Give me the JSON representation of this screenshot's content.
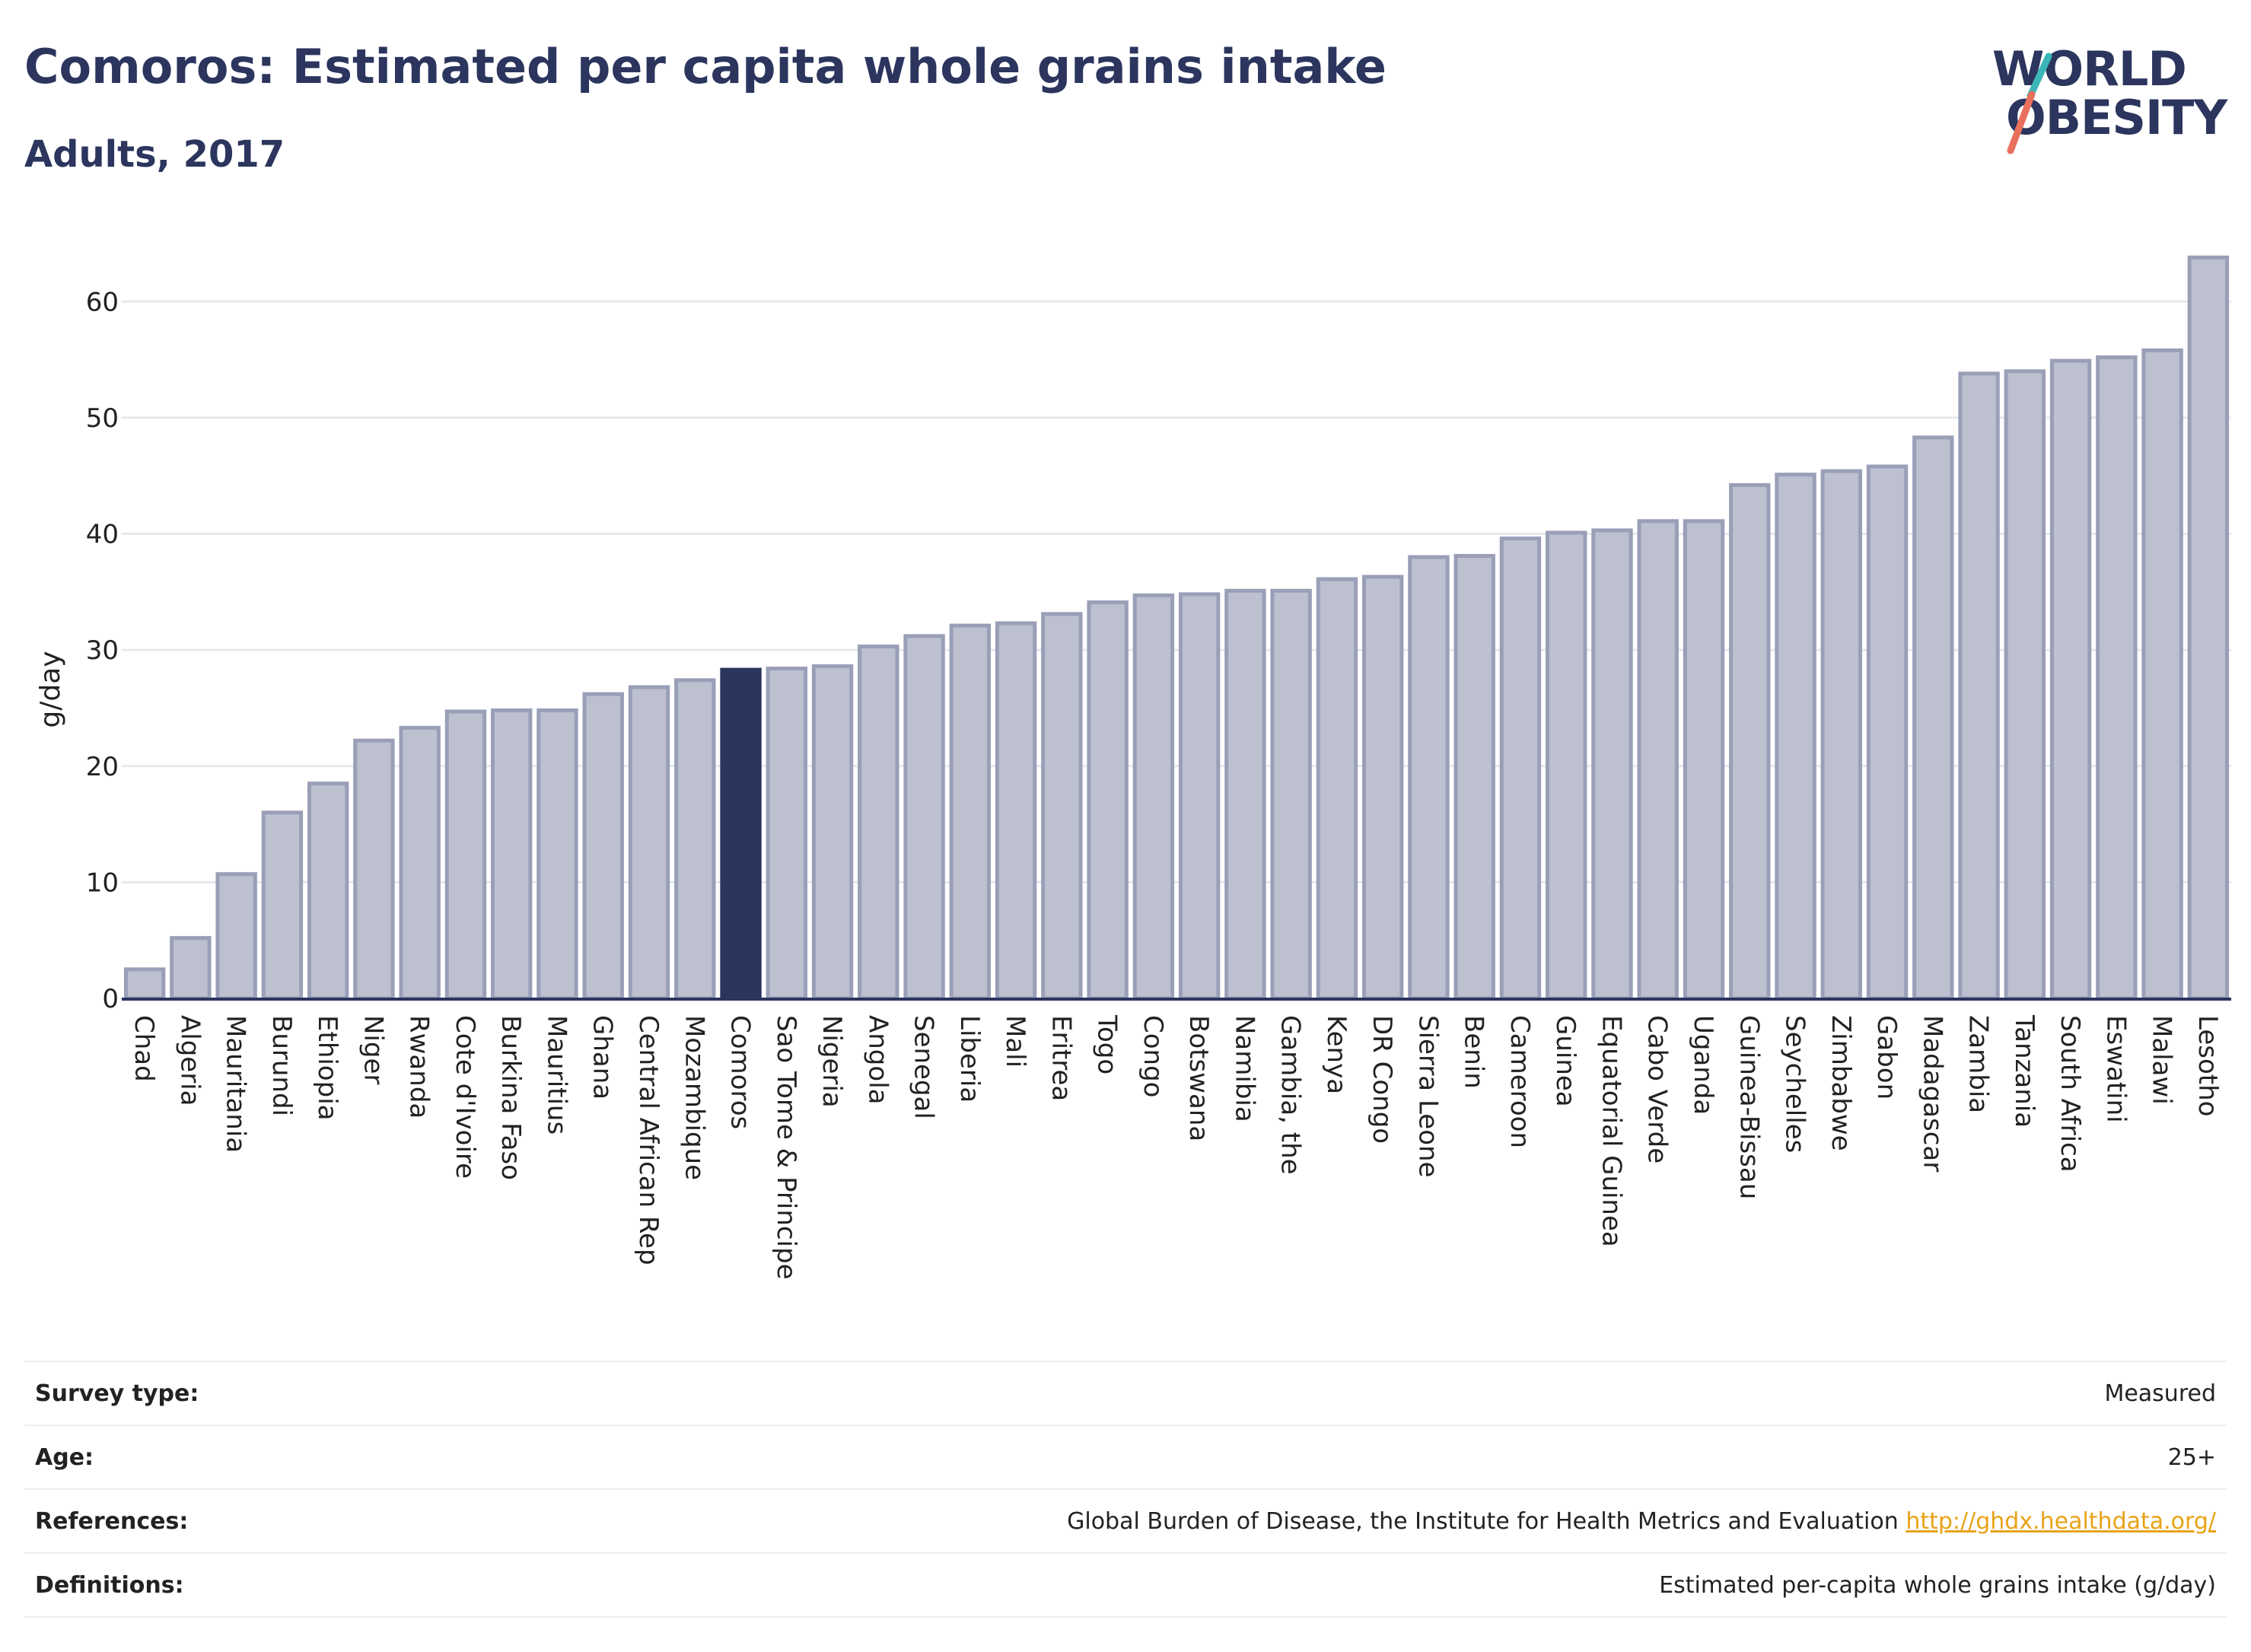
{
  "header": {
    "title": "Comoros: Estimated per capita whole grains intake",
    "subtitle": "Adults, 2017"
  },
  "logo": {
    "line1": "WORLD",
    "line2": "OBESITY",
    "colors": {
      "text": "#2b355e",
      "slash_top": "#3ab6b8",
      "slash_bottom": "#e8705c"
    }
  },
  "colors": {
    "bar_fill": "#bcc0cf",
    "bar_stroke": "#9a9fb8",
    "highlight_fill": "#2b355e",
    "axis": "#2b355e",
    "grid": "#e6e8ee",
    "link": "#e8a317"
  },
  "chart_data": {
    "type": "bar",
    "title": "Comoros: Estimated per capita whole grains intake",
    "subtitle": "Adults, 2017",
    "xlabel": "",
    "ylabel": "g/day",
    "ylim": [
      0,
      65
    ],
    "yticks": [
      0,
      10,
      20,
      30,
      40,
      50,
      60
    ],
    "grid": true,
    "legend": "none",
    "highlight": "Comoros",
    "categories": [
      "Chad",
      "Algeria",
      "Mauritania",
      "Burundi",
      "Ethiopia",
      "Niger",
      "Rwanda",
      "Cote d'Ivoire",
      "Burkina Faso",
      "Mauritius",
      "Ghana",
      "Central African Rep",
      "Mozambique",
      "Comoros",
      "Sao Tome & Principe",
      "Nigeria",
      "Angola",
      "Senegal",
      "Liberia",
      "Mali",
      "Eritrea",
      "Togo",
      "Congo",
      "Botswana",
      "Namibia",
      "Gambia, the",
      "Kenya",
      "DR Congo",
      "Sierra Leone",
      "Benin",
      "Cameroon",
      "Guinea",
      "Equatorial Guinea",
      "Cabo Verde",
      "Uganda",
      "Guinea-Bissau",
      "Seychelles",
      "Zimbabwe",
      "Gabon",
      "Madagascar",
      "Zambia",
      "Tanzania",
      "South Africa",
      "Eswatini",
      "Malawi",
      "Lesotho"
    ],
    "values": [
      2.5,
      5.2,
      10.7,
      16.0,
      18.5,
      22.2,
      23.3,
      24.7,
      24.8,
      24.8,
      26.2,
      26.8,
      27.4,
      28.3,
      28.4,
      28.6,
      30.3,
      31.2,
      32.1,
      32.3,
      33.1,
      34.1,
      34.7,
      34.8,
      35.1,
      35.1,
      36.1,
      36.3,
      38.0,
      38.1,
      39.6,
      40.1,
      40.3,
      41.1,
      41.1,
      44.2,
      45.1,
      45.4,
      45.8,
      48.3,
      53.8,
      54.0,
      54.9,
      55.2,
      55.8,
      63.8
    ]
  },
  "info": {
    "survey_type_label": "Survey type:",
    "survey_type_value": "Measured",
    "age_label": "Age:",
    "age_value": "25+",
    "references_label": "References:",
    "references_text": "Global Burden of Disease, the Institute for Health Metrics and Evaluation",
    "references_link": "http://ghdx.healthdata.org/",
    "definitions_label": "Definitions:",
    "definitions_value": "Estimated per-capita whole grains intake (g/day)"
  }
}
